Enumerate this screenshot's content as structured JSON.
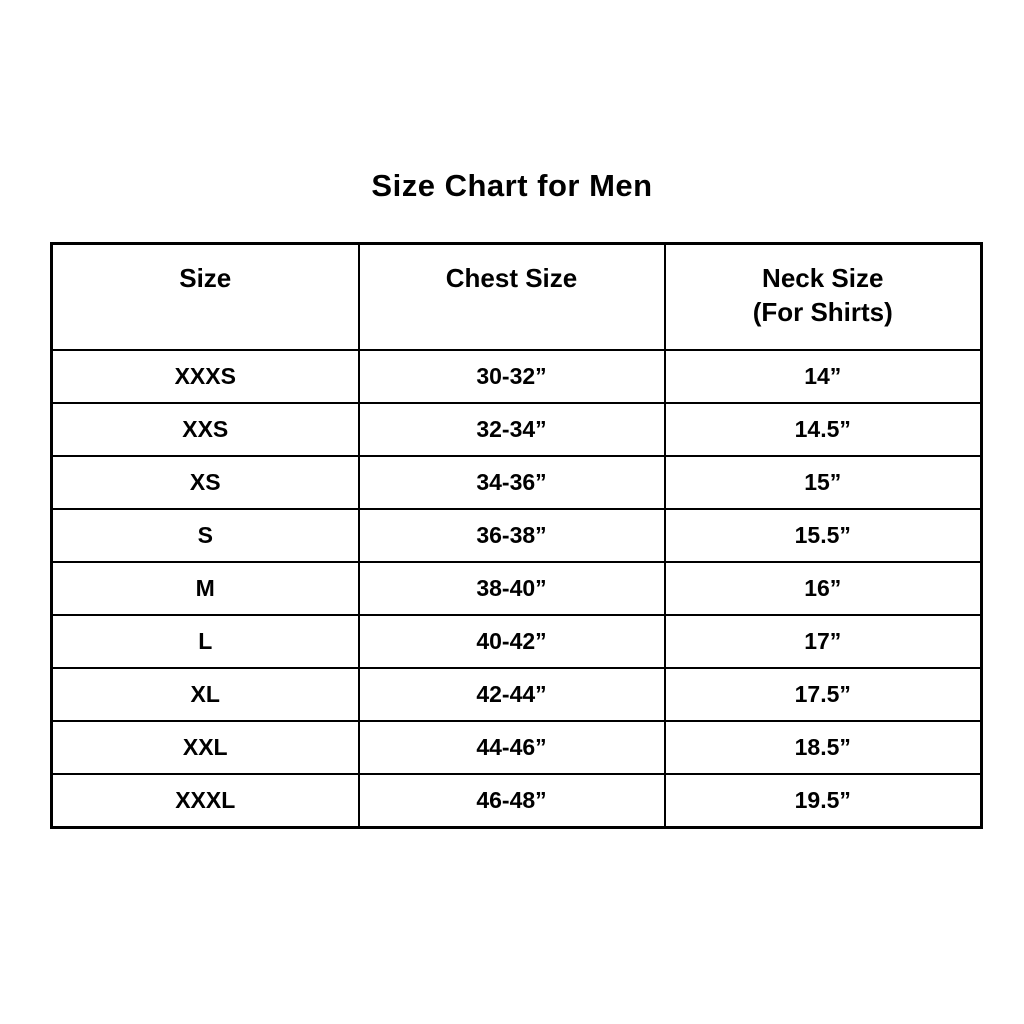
{
  "page": {
    "background_color": "#ffffff",
    "text_color": "#000000"
  },
  "title": "Size Chart for Men",
  "chart_data": {
    "type": "table",
    "title": "Size Chart for Men",
    "columns": [
      {
        "line1": "Size",
        "line2": ""
      },
      {
        "line1": "Chest Size",
        "line2": ""
      },
      {
        "line1": "Neck Size",
        "line2": "(For Shirts)"
      }
    ],
    "column_names": [
      "size",
      "chest-size",
      "neck-size"
    ],
    "rows": [
      [
        "XXXS",
        "30-32”",
        "14”"
      ],
      [
        "XXS",
        "32-34”",
        "14.5”"
      ],
      [
        "XS",
        "34-36”",
        "15”"
      ],
      [
        "S",
        "36-38”",
        "15.5”"
      ],
      [
        "M",
        "38-40”",
        "16”"
      ],
      [
        "L",
        "40-42”",
        "17”"
      ],
      [
        "XL",
        "42-44”",
        "17.5”"
      ],
      [
        "XXL",
        "44-46”",
        "18.5”"
      ],
      [
        "XXXL",
        "46-48”",
        "19.5”"
      ]
    ]
  }
}
